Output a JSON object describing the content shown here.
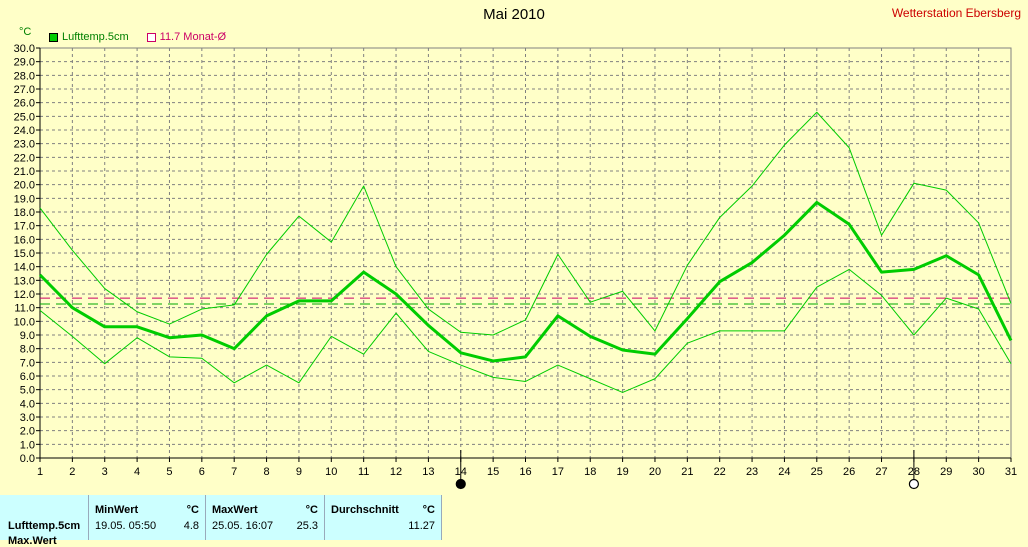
{
  "chart_data": {
    "type": "line",
    "title": "Mai 2010",
    "station": "Wetterstation Ebersberg",
    "unit": "°C",
    "x": [
      1,
      2,
      3,
      4,
      5,
      6,
      7,
      8,
      9,
      10,
      11,
      12,
      13,
      14,
      15,
      16,
      17,
      18,
      19,
      20,
      21,
      22,
      23,
      24,
      25,
      26,
      27,
      28,
      29,
      30,
      31
    ],
    "ylim": [
      0,
      30
    ],
    "ytick_step": 1,
    "grid": true,
    "legend": {
      "position": "top-left",
      "series_label": "Lufttemp.5cm",
      "mean_label": "11.7 Monat-Ø"
    },
    "series": [
      {
        "name": "Lufttemp.5cm",
        "role": "mean",
        "color": "#00cc00",
        "values": [
          13.4,
          11.0,
          9.6,
          9.6,
          8.8,
          9.0,
          8.0,
          10.4,
          11.5,
          11.5,
          13.6,
          12.0,
          9.7,
          7.7,
          7.1,
          7.4,
          10.4,
          8.9,
          7.9,
          7.6,
          10.2,
          12.9,
          14.3,
          16.3,
          18.7,
          17.1,
          13.6,
          13.8,
          14.8,
          13.4,
          8.6
        ]
      },
      {
        "role": "max",
        "color": "#00cc00",
        "values": [
          18.3,
          15.2,
          12.4,
          10.7,
          9.8,
          10.9,
          11.2,
          14.9,
          17.7,
          15.8,
          19.9,
          14.0,
          10.9,
          9.2,
          9.0,
          10.1,
          14.9,
          11.4,
          12.2,
          9.3,
          14.1,
          17.6,
          19.9,
          22.9,
          25.3,
          22.7,
          16.3,
          20.1,
          19.6,
          17.2,
          11.3
        ]
      },
      {
        "role": "min",
        "color": "#00cc00",
        "values": [
          10.8,
          8.9,
          6.9,
          8.8,
          7.4,
          7.3,
          5.5,
          6.8,
          5.5,
          8.9,
          7.6,
          10.6,
          7.8,
          6.8,
          5.9,
          5.6,
          6.8,
          5.8,
          4.8,
          5.8,
          8.4,
          9.3,
          9.3,
          9.3,
          12.5,
          13.8,
          11.9,
          9.0,
          11.7,
          10.9,
          6.9
        ]
      }
    ],
    "reference_lines": [
      {
        "value": 11.7,
        "color": "#cc0066"
      },
      {
        "value": 11.27,
        "color": "#00aa00"
      }
    ],
    "markers": [
      {
        "x": 14,
        "style": "filled"
      },
      {
        "x": 28,
        "style": "open"
      }
    ]
  },
  "stats": {
    "row_label": "Lufttemp.5cm",
    "row_label_2": "Max.Wert",
    "min_header": "MinWert",
    "min_unit": "°C",
    "min_time": "19.05.  05:50",
    "min_value": "4.8",
    "max_header": "MaxWert",
    "max_unit": "°C",
    "max_time": "25.05.  16:07",
    "max_value": "25.3",
    "avg_header": "Durchschnitt",
    "avg_unit": "°C",
    "avg_value": "11.27"
  }
}
